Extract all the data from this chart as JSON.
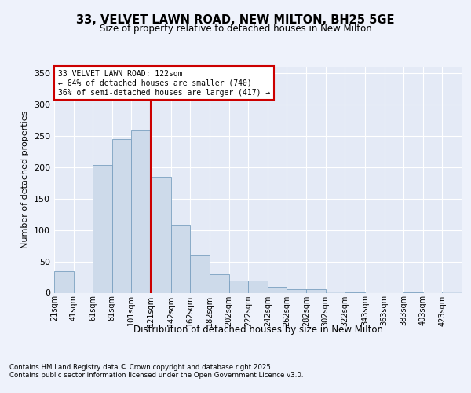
{
  "title_line1": "33, VELVET LAWN ROAD, NEW MILTON, BH25 5GE",
  "title_line2": "Size of property relative to detached houses in New Milton",
  "xlabel": "Distribution of detached houses by size in New Milton",
  "ylabel": "Number of detached properties",
  "bin_labels": [
    "21sqm",
    "41sqm",
    "61sqm",
    "81sqm",
    "101sqm",
    "121sqm",
    "142sqm",
    "162sqm",
    "182sqm",
    "202sqm",
    "222sqm",
    "242sqm",
    "262sqm",
    "282sqm",
    "302sqm",
    "322sqm",
    "343sqm",
    "363sqm",
    "383sqm",
    "403sqm",
    "423sqm"
  ],
  "bar_lefts": [
    21,
    41,
    61,
    81,
    101,
    121,
    142,
    162,
    182,
    202,
    222,
    242,
    262,
    282,
    302,
    322,
    343,
    363,
    383,
    403,
    423
  ],
  "bar_widths": [
    20,
    20,
    20,
    20,
    20,
    21,
    20,
    20,
    20,
    20,
    20,
    20,
    20,
    20,
    20,
    21,
    20,
    20,
    20,
    20,
    20
  ],
  "bar_values": [
    35,
    0,
    203,
    245,
    258,
    185,
    108,
    60,
    30,
    19,
    19,
    10,
    6,
    6,
    2,
    1,
    0,
    0,
    1,
    0,
    2
  ],
  "vline_x": 121,
  "bar_color": "#cddaea",
  "bar_edge_color": "#7aa0c0",
  "vline_color": "#cc0000",
  "annotation_box_color": "#cc0000",
  "annotation_text": "33 VELVET LAWN ROAD: 122sqm\n← 64% of detached houses are smaller (740)\n36% of semi-detached houses are larger (417) →",
  "footnote_line1": "Contains HM Land Registry data © Crown copyright and database right 2025.",
  "footnote_line2": "Contains public sector information licensed under the Open Government Licence v3.0.",
  "ylim": [
    0,
    360
  ],
  "yticks": [
    0,
    50,
    100,
    150,
    200,
    250,
    300,
    350
  ],
  "background_color": "#eef2fb",
  "plot_bg_color": "#e4eaf6"
}
